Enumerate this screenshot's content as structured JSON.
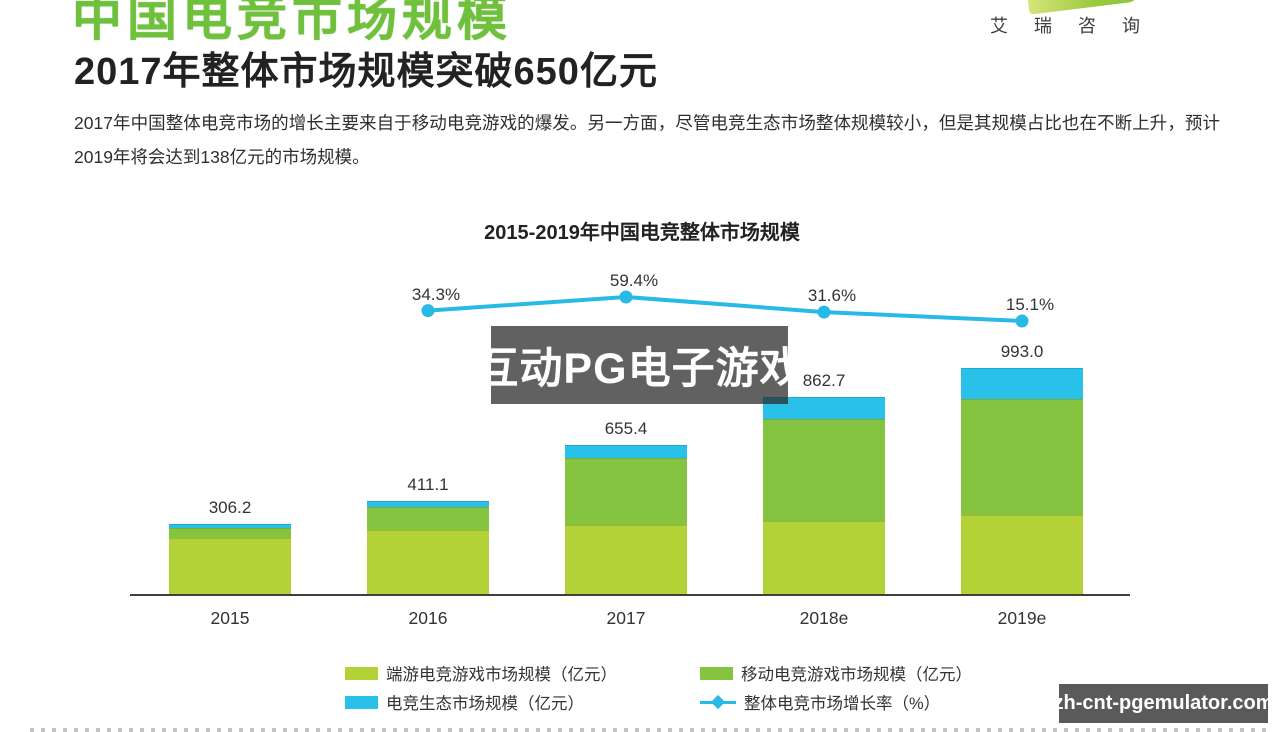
{
  "header": {
    "main_title": "中国电竞市场规模",
    "subtitle": "2017年整体市场规模突破650亿元",
    "body_text": "2017年中国整体电竞市场的增长主要来自于移动电竞游戏的爆发。另一方面，尽管电竞生态市场整体规模较小，但是其规模占比也在不断上升，预计2019年将会达到138亿元的市场规模。",
    "logo_text": "艾瑞咨询"
  },
  "watermarks": {
    "center_text": "互动PG电子游戏",
    "bottom_right_text": "zh-cnt-pgemulator.com"
  },
  "colors": {
    "accent_green": "#6fc13c",
    "bar_pc_green": "#b2d237",
    "bar_mobile_green": "#85c441",
    "bar_eco_cyan": "#29c1ea",
    "growth_line_cyan": "#29b9e5",
    "text_dark": "#333333",
    "axis_line": "#3f3f3f"
  },
  "chart_data": {
    "type": "bar",
    "subtype": "stacked-bars-with-growth-line",
    "title": "2015-2019年中国电竞整体市场规模",
    "categories": [
      "2015",
      "2016",
      "2017",
      "2018e",
      "2019e"
    ],
    "series": [
      {
        "name": "端游电竞游戏市场规模（亿元）",
        "kind": "bar",
        "color": "#b2d237",
        "values": [
          245.0,
          281.2,
          304.0,
          320.0,
          346.0
        ]
      },
      {
        "name": "移动电竞游戏市场规模（亿元）",
        "kind": "bar",
        "color": "#85c441",
        "values": [
          44.2,
          102.6,
          294.0,
          446.7,
          509.0
        ]
      },
      {
        "name": "电竞生态市场规模（亿元）",
        "kind": "bar",
        "color": "#29c1ea",
        "values": [
          17.0,
          27.3,
          57.4,
          96.0,
          138.0
        ]
      },
      {
        "name": "整体电竞市场增长率（%）",
        "kind": "line",
        "color": "#29b9e5",
        "values": [
          null,
          34.3,
          59.4,
          31.6,
          15.1
        ]
      }
    ],
    "bar_totals": [
      306.2,
      411.1,
      655.4,
      862.7,
      993.0
    ],
    "bar_total_labels": [
      "306.2",
      "411.1",
      "655.4",
      "862.7",
      "993.0"
    ],
    "growth_labels": [
      "34.3%",
      "59.4%",
      "31.6%",
      "15.1%"
    ],
    "ylim": [
      0,
      1050
    ],
    "grid": false,
    "legend_position": "bottom"
  }
}
